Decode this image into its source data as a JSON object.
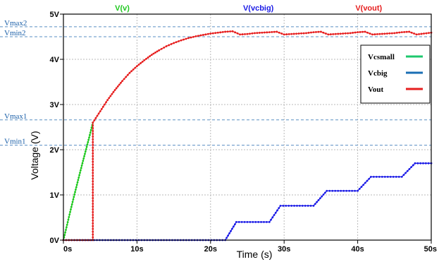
{
  "chart_data": {
    "type": "line",
    "xlabel": "Time (s)",
    "ylabel": "Voltage  (V)",
    "xlim": [
      0,
      50
    ],
    "ylim": [
      0,
      5
    ],
    "x_ticks": [
      "0s",
      "10s",
      "20s",
      "30s",
      "40s",
      "50s"
    ],
    "y_ticks": [
      "0V",
      "1V",
      "2V",
      "3V",
      "4V",
      "5V"
    ],
    "headers": [
      {
        "text": "V(v)",
        "color": "#1ec81e",
        "x": 8
      },
      {
        "text": "V(vcbig)",
        "color": "#1a1ae6",
        "x": 26.5
      },
      {
        "text": "V(vout)",
        "color": "#e61e1e",
        "x": 41.5
      }
    ],
    "reference_lines": [
      {
        "label": "Vmax2",
        "value": 4.72
      },
      {
        "label": "Vmin2",
        "value": 4.5
      },
      {
        "label": "Vmax1",
        "value": 2.66
      },
      {
        "label": "Vmin1",
        "value": 2.1
      }
    ],
    "legend": {
      "placement": "top-right",
      "entries": [
        {
          "name": "Vcsmall",
          "color": "#1ec86e"
        },
        {
          "name": "Vcbig",
          "color": "#1a6eb4"
        },
        {
          "name": "Vout",
          "color": "#e61e1e"
        }
      ]
    },
    "series": [
      {
        "key": "v",
        "color": "#1ec81e",
        "points": [
          [
            0,
            0
          ],
          [
            0.5,
            0.34
          ],
          [
            1,
            0.68
          ],
          [
            1.5,
            1.01
          ],
          [
            2,
            1.33
          ],
          [
            2.5,
            1.65
          ],
          [
            3,
            1.96
          ],
          [
            3.5,
            2.27
          ],
          [
            4,
            2.6
          ]
        ]
      },
      {
        "key": "vcbig",
        "color": "#1a1ae6",
        "points": [
          [
            0,
            0
          ],
          [
            22,
            0
          ],
          [
            23.5,
            0.4
          ],
          [
            28,
            0.4
          ],
          [
            29.5,
            0.76
          ],
          [
            34,
            0.76
          ],
          [
            35.8,
            1.09
          ],
          [
            40,
            1.09
          ],
          [
            41.8,
            1.4
          ],
          [
            46,
            1.4
          ],
          [
            47.8,
            1.7
          ],
          [
            50,
            1.7
          ]
        ]
      },
      {
        "key": "vout",
        "color": "#e61e1e",
        "points": [
          [
            0,
            0
          ],
          [
            4,
            0
          ],
          [
            4,
            2.6
          ],
          [
            5,
            2.85
          ],
          [
            6,
            3.1
          ],
          [
            7,
            3.32
          ],
          [
            8,
            3.52
          ],
          [
            9,
            3.7
          ],
          [
            10,
            3.85
          ],
          [
            11,
            3.98
          ],
          [
            12,
            4.1
          ],
          [
            13,
            4.2
          ],
          [
            14,
            4.29
          ],
          [
            15,
            4.36
          ],
          [
            16,
            4.42
          ],
          [
            17,
            4.47
          ],
          [
            18,
            4.51
          ],
          [
            19,
            4.54
          ],
          [
            20,
            4.57
          ],
          [
            21,
            4.59
          ],
          [
            22,
            4.61
          ],
          [
            23,
            4.62
          ],
          [
            24,
            4.55
          ],
          [
            25,
            4.56
          ],
          [
            26,
            4.58
          ],
          [
            27,
            4.59
          ],
          [
            28,
            4.6
          ],
          [
            29,
            4.61
          ],
          [
            30,
            4.55
          ],
          [
            31,
            4.56
          ],
          [
            32,
            4.57
          ],
          [
            33,
            4.58
          ],
          [
            34,
            4.6
          ],
          [
            35,
            4.61
          ],
          [
            36,
            4.55
          ],
          [
            37,
            4.56
          ],
          [
            38,
            4.57
          ],
          [
            39,
            4.58
          ],
          [
            40,
            4.6
          ],
          [
            41,
            4.61
          ],
          [
            42,
            4.55
          ],
          [
            43,
            4.56
          ],
          [
            44,
            4.57
          ],
          [
            45,
            4.58
          ],
          [
            46,
            4.6
          ],
          [
            47,
            4.61
          ],
          [
            48,
            4.55
          ],
          [
            49,
            4.57
          ],
          [
            50,
            4.59
          ]
        ]
      }
    ]
  }
}
